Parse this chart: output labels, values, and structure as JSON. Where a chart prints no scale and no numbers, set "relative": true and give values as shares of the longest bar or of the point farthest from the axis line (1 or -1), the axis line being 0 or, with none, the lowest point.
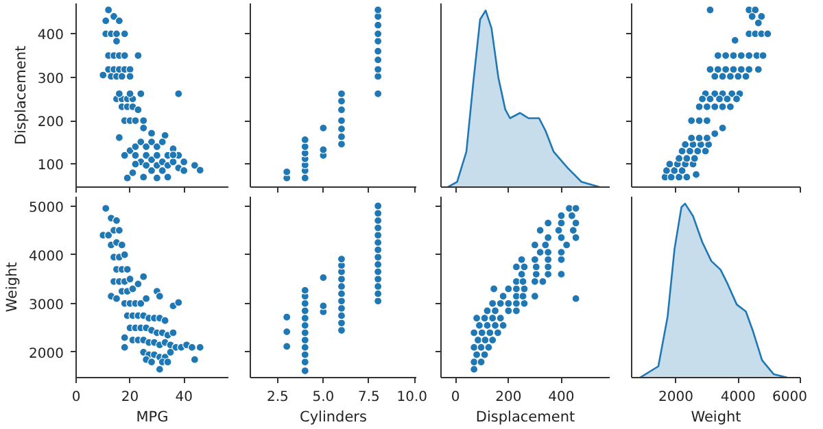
{
  "chart_data": [
    {
      "type": "scatter",
      "ylabel": "Displacement",
      "color": "#1f77b4",
      "marker": "circle",
      "xlim": [
        0,
        56.5
      ],
      "xticks": [
        0,
        20,
        40
      ],
      "ylim": [
        47,
        470
      ],
      "yticks": [
        100,
        200,
        300,
        400
      ],
      "tick_labels": "y",
      "x": [
        12,
        14,
        11,
        16,
        11,
        13,
        15,
        18,
        15,
        12,
        14,
        16,
        18,
        23,
        10,
        12,
        14,
        16,
        18,
        20,
        13,
        15,
        17,
        20,
        15,
        17,
        19,
        21,
        16,
        20,
        24,
        38,
        17,
        19,
        21,
        23,
        18,
        20,
        22,
        25,
        16,
        20,
        25,
        28,
        33,
        18,
        22,
        22,
        24,
        24,
        26,
        26,
        26,
        28,
        28,
        28,
        30,
        30,
        30,
        32,
        32,
        32,
        34,
        34,
        34,
        36,
        36,
        38,
        38,
        40,
        40,
        44,
        46,
        19,
        25,
        30,
        21,
        22,
        36
      ],
      "values": [
        455,
        440,
        430,
        430,
        400,
        400,
        400,
        400,
        383,
        350,
        350,
        350,
        350,
        350,
        305,
        318,
        318,
        318,
        318,
        318,
        302,
        302,
        302,
        302,
        250,
        250,
        250,
        250,
        262,
        262,
        262,
        262,
        232,
        232,
        232,
        225,
        200,
        200,
        200,
        200,
        161,
        131,
        183,
        171,
        166,
        120,
        140,
        120,
        151,
        105,
        140,
        120,
        97,
        151,
        110,
        85,
        140,
        120,
        97,
        151,
        105,
        85,
        120,
        97,
        70,
        105,
        135,
        120,
        91,
        105,
        85,
        97,
        86,
        68,
        70,
        68,
        80,
        100,
        121
      ]
    },
    {
      "type": "scatter",
      "color": "#1f77b4",
      "marker": "circle",
      "xlim": [
        1.0,
        10.1
      ],
      "xticks": [
        2.5,
        5,
        7.5,
        10
      ],
      "ylim": [
        47,
        470
      ],
      "yticks": [
        100,
        200,
        300,
        400
      ],
      "tick_labels": false,
      "x": [
        3,
        3,
        4,
        4,
        4,
        4,
        4,
        4,
        4,
        5,
        5,
        5,
        6,
        6,
        6,
        6,
        6,
        6,
        6,
        8,
        8,
        8,
        8,
        8,
        8,
        8,
        8,
        8,
        8
      ],
      "values": [
        68,
        82,
        68,
        85,
        98,
        112,
        125,
        140,
        156,
        120,
        133,
        183,
        146,
        163,
        181,
        200,
        225,
        245,
        262,
        262,
        302,
        318,
        340,
        360,
        383,
        400,
        420,
        440,
        455
      ]
    },
    {
      "type": "area",
      "relative": true,
      "color": "#1f77b4",
      "xlim": [
        -55,
        583
      ],
      "xticks": [
        0,
        200,
        400
      ],
      "tick_labels": false,
      "x": [
        -29,
        6,
        41,
        67,
        93,
        114,
        136,
        162,
        188,
        206,
        244,
        276,
        316,
        340,
        371,
        423,
        476,
        545
      ],
      "values": [
        0,
        0.03,
        0.2,
        0.59,
        0.95,
        1,
        0.9,
        0.62,
        0.44,
        0.39,
        0.42,
        0.39,
        0.39,
        0.32,
        0.2,
        0.11,
        0.03,
        0
      ]
    },
    {
      "type": "scatter",
      "color": "#1f77b4",
      "marker": "circle",
      "xlim": [
        578,
        6000
      ],
      "xticks": [
        2000,
        4000,
        6000
      ],
      "ylim": [
        47,
        470
      ],
      "yticks": [
        100,
        200,
        300,
        400
      ],
      "tick_labels": false,
      "x": [
        3100,
        4350,
        4550,
        4450,
        4750,
        4650,
        4350,
        4550,
        4750,
        4950,
        3900,
        3350,
        3600,
        3850,
        4100,
        4350,
        4600,
        4800,
        3100,
        3350,
        3600,
        3850,
        4100,
        4350,
        4650,
        3250,
        3500,
        3750,
        4000,
        4250,
        2950,
        3250,
        3500,
        3800,
        4050,
        2850,
        3100,
        3400,
        3650,
        3950,
        2750,
        3000,
        3250,
        3500,
        3750,
        2500,
        2750,
        3000,
        3500,
        3250,
        1650,
        1850,
        2100,
        2350,
        2650,
        1700,
        1950,
        2200,
        1800,
        2050,
        2300,
        2550,
        2100,
        2350,
        2600,
        2200,
        2450,
        2700,
        2950,
        2300,
        2550,
        2800,
        3050,
        2500,
        2750,
        3000
      ],
      "values": [
        455,
        455,
        455,
        440,
        440,
        425,
        400,
        400,
        400,
        400,
        385,
        350,
        350,
        350,
        350,
        350,
        350,
        350,
        318,
        318,
        318,
        318,
        318,
        318,
        318,
        302,
        302,
        302,
        302,
        302,
        262,
        262,
        262,
        262,
        262,
        250,
        250,
        250,
        250,
        250,
        232,
        232,
        232,
        232,
        232,
        200,
        200,
        200,
        183,
        170,
        70,
        70,
        70,
        70,
        76,
        85,
        85,
        85,
        100,
        100,
        100,
        100,
        113,
        113,
        113,
        130,
        130,
        130,
        130,
        145,
        145,
        145,
        145,
        160,
        160,
        160
      ]
    },
    {
      "type": "scatter",
      "xlabel": "MPG",
      "ylabel": "Weight",
      "color": "#1f77b4",
      "marker": "circle",
      "xlim": [
        0,
        56.5
      ],
      "xticks": [
        0,
        20,
        40
      ],
      "ylim": [
        1480,
        5190
      ],
      "yticks": [
        2000,
        3000,
        4000,
        5000
      ],
      "x": [
        11,
        13,
        15,
        10,
        12,
        14,
        16,
        13,
        15,
        17,
        14,
        16,
        18,
        15,
        17,
        19,
        14,
        16,
        18,
        20,
        13,
        15,
        17,
        19,
        21,
        23,
        25,
        18,
        20,
        22,
        24,
        26,
        30,
        31,
        36,
        38,
        19,
        21,
        23,
        25,
        27,
        29,
        31,
        33,
        20,
        22,
        24,
        26,
        28,
        30,
        32,
        34,
        36,
        18,
        18,
        21,
        23,
        25,
        27,
        29,
        31,
        33,
        35,
        37,
        39,
        41,
        43,
        46,
        25,
        27,
        29,
        31,
        33,
        35,
        26,
        28,
        32,
        34,
        44,
        31
      ],
      "values": [
        4950,
        4750,
        4700,
        4400,
        4400,
        4500,
        4500,
        4200,
        4250,
        4200,
        3950,
        3950,
        4000,
        3700,
        3700,
        3700,
        3450,
        3450,
        3450,
        3500,
        3150,
        3100,
        3250,
        3250,
        3300,
        3400,
        3550,
        3000,
        3000,
        3000,
        3000,
        3100,
        3250,
        3150,
        2950,
        3020,
        2750,
        2750,
        2750,
        2750,
        2700,
        2700,
        2700,
        2650,
        2500,
        2500,
        2500,
        2500,
        2450,
        2400,
        2400,
        2350,
        2400,
        2300,
        2100,
        2250,
        2250,
        2250,
        2200,
        2200,
        2150,
        2200,
        2150,
        2100,
        2100,
        2150,
        2100,
        2100,
        2000,
        1950,
        1950,
        1900,
        1900,
        2000,
        1850,
        1800,
        1800,
        1800,
        1850,
        1650
      ]
    },
    {
      "type": "scatter",
      "xlabel": "Cylinders",
      "color": "#1f77b4",
      "marker": "circle",
      "xlim": [
        1.0,
        10.1
      ],
      "xticks": [
        {
          "value": 2.5,
          "label": "2.5"
        },
        {
          "value": 5,
          "label": "5.0"
        },
        {
          "value": 7.5,
          "label": "7.5"
        },
        {
          "value": 10,
          "label": "10.0"
        }
      ],
      "ylim": [
        1480,
        5190
      ],
      "yticks": [
        2000,
        3000,
        4000,
        5000
      ],
      "tick_labels": "x",
      "x": [
        3,
        3,
        3,
        4,
        4,
        4,
        4,
        4,
        4,
        4,
        4,
        4,
        4,
        4,
        4,
        5,
        5,
        5,
        6,
        6,
        6,
        6,
        6,
        6,
        6,
        6,
        6,
        6,
        6,
        8,
        8,
        8,
        8,
        8,
        8,
        8,
        8,
        8,
        8,
        8,
        8,
        8,
        8
      ],
      "values": [
        2120,
        2420,
        2720,
        1620,
        1800,
        1950,
        2100,
        2250,
        2400,
        2550,
        2700,
        2850,
        3000,
        3150,
        3270,
        2830,
        2950,
        3530,
        2450,
        2600,
        2750,
        2900,
        3050,
        3200,
        3350,
        3500,
        3650,
        3780,
        3910,
        3050,
        3200,
        3350,
        3500,
        3650,
        3800,
        3950,
        4100,
        4250,
        4400,
        4550,
        4700,
        4850,
        5000
      ]
    },
    {
      "type": "scatter",
      "xlabel": "Displacement",
      "color": "#1f77b4",
      "marker": "circle",
      "xlim": [
        -55,
        583
      ],
      "xticks": [
        0,
        200,
        400
      ],
      "ylim": [
        1480,
        5190
      ],
      "yticks": [
        2000,
        3000,
        4000,
        5000
      ],
      "tick_labels": "x",
      "x": [
        70,
        70,
        97,
        80,
        110,
        70,
        97,
        125,
        85,
        112,
        140,
        70,
        100,
        130,
        160,
        90,
        120,
        150,
        180,
        80,
        110,
        140,
        170,
        120,
        150,
        200,
        230,
        140,
        170,
        200,
        230,
        260,
        180,
        230,
        255,
        300,
        145,
        200,
        230,
        260,
        230,
        255,
        300,
        330,
        250,
        305,
        350,
        400,
        230,
        260,
        305,
        350,
        250,
        300,
        350,
        400,
        320,
        350,
        400,
        300,
        340,
        420,
        350,
        400,
        455,
        320,
        390,
        445,
        350,
        400,
        455,
        400,
        440,
        430,
        455,
        455
      ],
      "values": [
        1650,
        1800,
        1800,
        1950,
        1950,
        2100,
        2100,
        2100,
        2250,
        2250,
        2250,
        2400,
        2400,
        2400,
        2400,
        2550,
        2550,
        2550,
        2550,
        2700,
        2700,
        2700,
        2700,
        2850,
        2850,
        2850,
        2850,
        3000,
        3000,
        3000,
        3000,
        3000,
        3150,
        3150,
        3150,
        3150,
        3300,
        3300,
        3300,
        3300,
        3450,
        3450,
        3450,
        3450,
        3600,
        3600,
        3600,
        3600,
        3750,
        3750,
        3750,
        3750,
        3900,
        3900,
        3900,
        3900,
        4050,
        4050,
        4050,
        4200,
        4200,
        4200,
        4350,
        4350,
        4350,
        4500,
        4500,
        4500,
        4650,
        4650,
        4650,
        4800,
        4800,
        4950,
        4950,
        3100
      ]
    },
    {
      "type": "area",
      "relative": true,
      "xlabel": "Weight",
      "color": "#1f77b4",
      "xlim": [
        578,
        6000
      ],
      "xticks": [
        2000,
        4000,
        6000
      ],
      "tick_labels": "x",
      "x": [
        845,
        1436,
        1733,
        1956,
        2178,
        2294,
        2547,
        2845,
        3138,
        3436,
        3658,
        3956,
        4249,
        4471,
        4769,
        5138,
        5582
      ],
      "values": [
        0,
        0.065,
        0.35,
        0.74,
        0.98,
        1,
        0.93,
        0.78,
        0.67,
        0.62,
        0.54,
        0.42,
        0.38,
        0.27,
        0.1,
        0.02,
        0
      ]
    }
  ]
}
